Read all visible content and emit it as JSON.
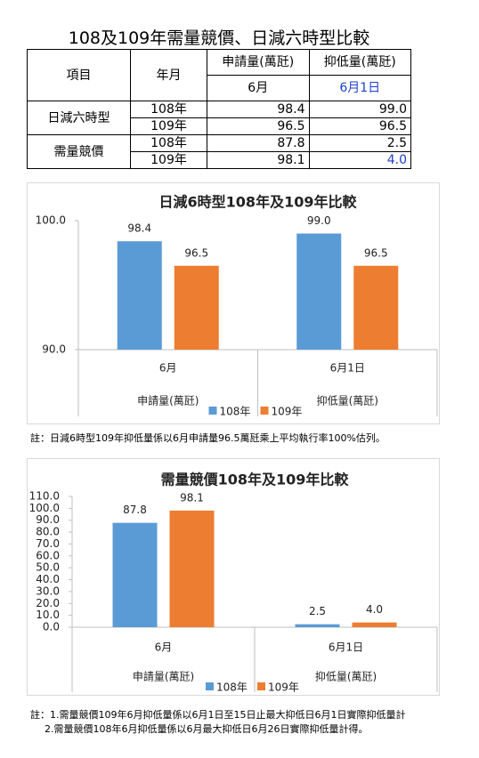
{
  "title": "108及109年需量競價、日減六時型比較",
  "table": {
    "header": [
      "項目",
      "年月",
      "申請量(萬瓩)",
      "抑低量(萬瓩)"
    ],
    "subheader": [
      "6月",
      "6月1日"
    ],
    "groups": [
      {
        "name": "日減六時型",
        "rows": [
          [
            "108年",
            "98.4",
            "99.0"
          ],
          [
            "109年",
            "96.5",
            "96.5"
          ]
        ]
      },
      {
        "name": "需量競價",
        "rows": [
          [
            "108年",
            "87.8",
            "2.5"
          ],
          [
            "109年",
            "98.1",
            "4.0"
          ]
        ]
      }
    ]
  },
  "chart_data": [
    {
      "type": "bar",
      "title": "日減6時型108年及109年比較",
      "categories": [
        "6月",
        "6月1日"
      ],
      "category_groups": [
        "申請量(萬瓩)",
        "抑低量(萬瓩)"
      ],
      "series": [
        {
          "name": "108年",
          "color": "#5b9bd5",
          "values": [
            98.4,
            99.0
          ],
          "value_labels": [
            "98.4",
            "99.0"
          ]
        },
        {
          "name": "109年",
          "color": "#ed7d31",
          "values": [
            96.5,
            96.5
          ],
          "value_labels": [
            "96.5",
            "96.5"
          ]
        }
      ],
      "ylim": [
        90,
        100
      ],
      "yticks": [
        {
          "value": 90,
          "label": "90.0"
        },
        {
          "value": 100,
          "label": "100.0"
        }
      ],
      "legend": "bottom"
    },
    {
      "type": "bar",
      "title": "需量競價108年及109年比較",
      "categories": [
        "6月",
        "6月1日"
      ],
      "category_groups": [
        "申請量(萬瓩)",
        "抑低量(萬瓩)"
      ],
      "series": [
        {
          "name": "108年",
          "color": "#5b9bd5",
          "values": [
            87.8,
            2.5
          ],
          "value_labels": [
            "87.8",
            "2.5"
          ]
        },
        {
          "name": "109年",
          "color": "#ed7d31",
          "values": [
            98.1,
            4.0
          ],
          "value_labels": [
            "98.1",
            "4.0"
          ]
        }
      ],
      "ylim": [
        0,
        110
      ],
      "yticks": [
        {
          "value": 0,
          "label": "0.0"
        },
        {
          "value": 10,
          "label": "10.0"
        },
        {
          "value": 20,
          "label": "20.0"
        },
        {
          "value": 30,
          "label": "30.0"
        },
        {
          "value": 40,
          "label": "40.0"
        },
        {
          "value": 50,
          "label": "50.0"
        },
        {
          "value": 60,
          "label": "60.0"
        },
        {
          "value": 70,
          "label": "70.0"
        },
        {
          "value": 80,
          "label": "80.0"
        },
        {
          "value": 90,
          "label": "90.0"
        },
        {
          "value": 100,
          "label": "100.0"
        },
        {
          "value": 110,
          "label": "110.0"
        }
      ],
      "legend": "bottom"
    }
  ],
  "notes": [
    "註：日減6時型109年抑低量係以6月申請量96.5萬瓩乘上平均執行率100%估列。"
  ],
  "notes2": [
    "註：1.需量競價109年6月抑低量係以6月1日至15日止最大抑低日6月1日實際抑低量計",
    "2.需量競價108年6月抑低量係以6月最大抑低日6月26日實際抑低量計得。"
  ]
}
